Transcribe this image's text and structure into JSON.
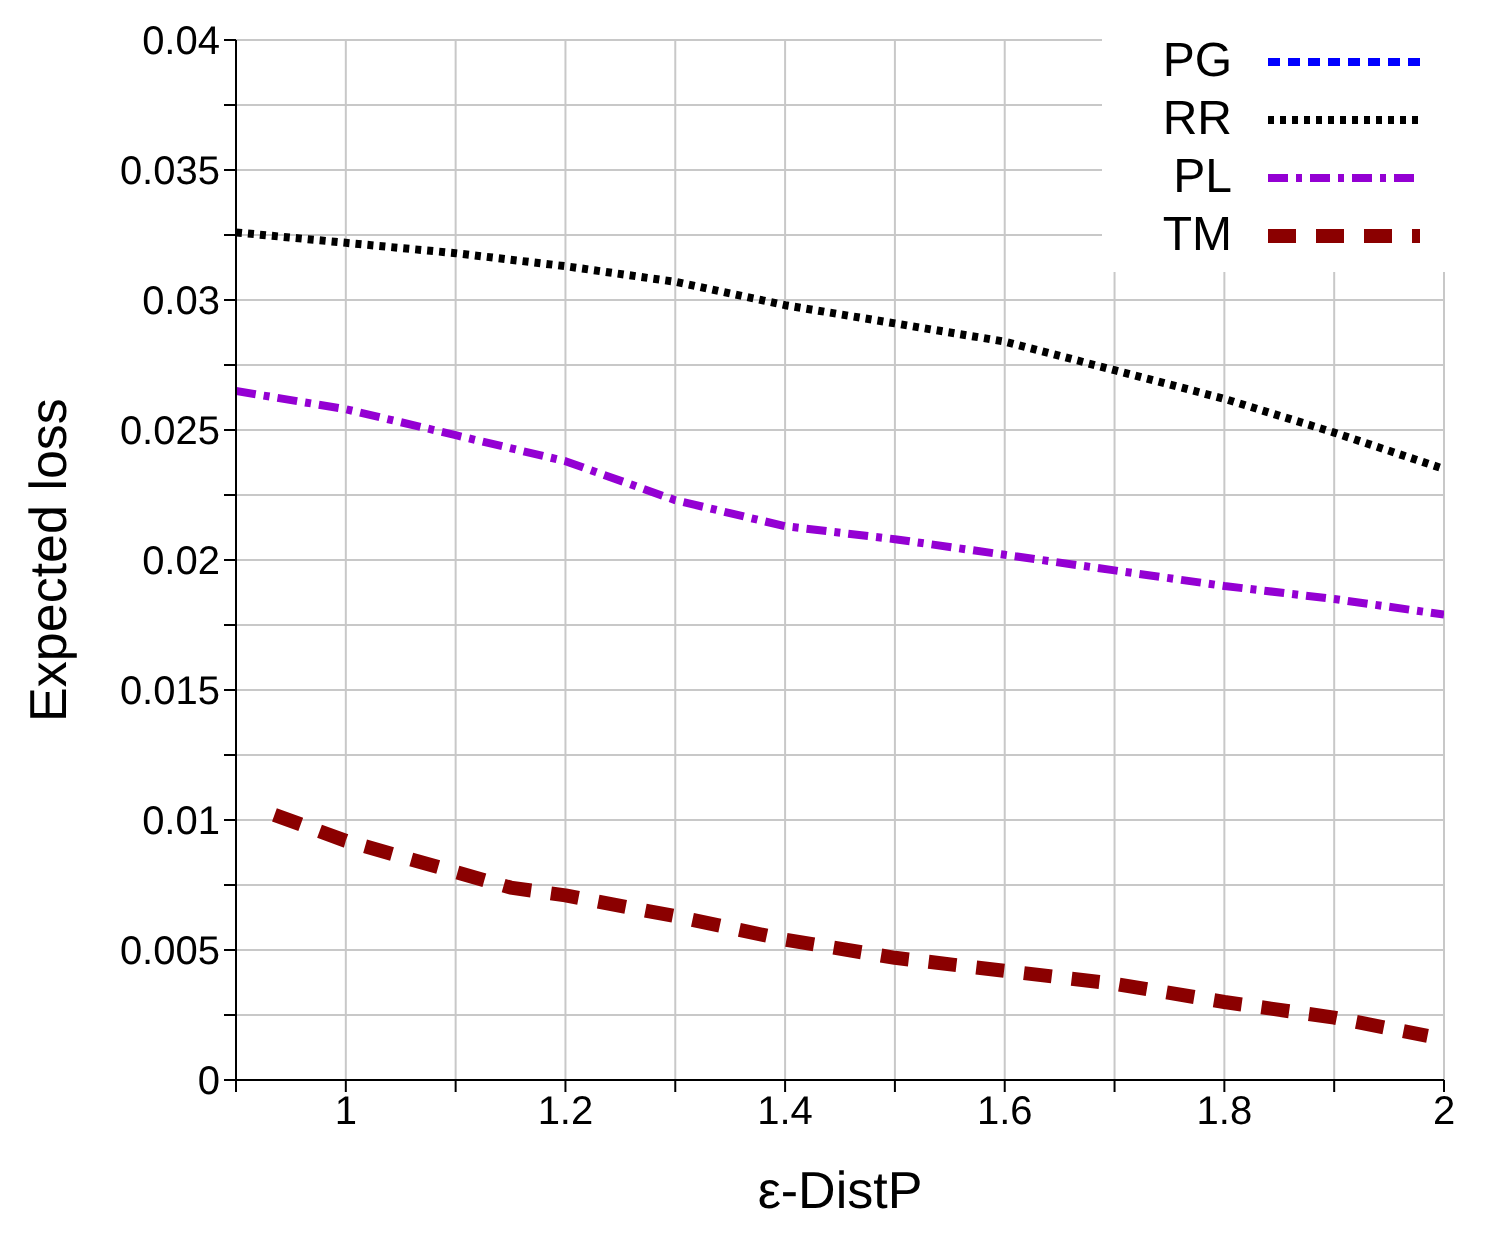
{
  "chart_data": {
    "type": "line",
    "xlabel": "ε-DistP",
    "ylabel": "Expected loss",
    "xlim": [
      0.9,
      2
    ],
    "xticks": [
      {
        "value": 0.9,
        "label": null
      },
      1,
      {
        "value": 1.1,
        "label": null
      },
      1.2,
      {
        "value": 1.3,
        "label": null
      },
      1.4,
      {
        "value": 1.5,
        "label": null
      },
      1.6,
      {
        "value": 1.7,
        "label": null
      },
      1.8,
      {
        "value": 1.9,
        "label": null
      },
      2
    ],
    "ylim": [
      0,
      0.04
    ],
    "yticks": [
      0,
      {
        "value": 0.0025,
        "label": null
      },
      0.005,
      {
        "value": 0.0075,
        "label": null
      },
      0.01,
      {
        "value": 0.0125,
        "label": null
      },
      0.015,
      {
        "value": 0.0175,
        "label": null
      },
      0.02,
      {
        "value": 0.0225,
        "label": null
      },
      0.025,
      {
        "value": 0.0275,
        "label": null
      },
      0.03,
      {
        "value": 0.0325,
        "label": null
      },
      0.035,
      {
        "value": 0.0375,
        "label": null
      },
      0.04
    ],
    "grid": true,
    "legend": "top right",
    "marker": "none",
    "series": [
      {
        "name": "PG",
        "color": "#0000ff",
        "line_style": "dashed"
      },
      {
        "name": "RR",
        "color": "#000000",
        "line_style": "dotted",
        "x": [
          0.9,
          1.0,
          1.1,
          1.2,
          1.3,
          1.4,
          1.5,
          1.6,
          1.7,
          1.8,
          1.9,
          2.0
        ],
        "values": [
          0.0326,
          0.0322,
          0.0318,
          0.0313,
          0.0307,
          0.0298,
          0.0291,
          0.0284,
          0.0273,
          0.0262,
          0.0249,
          0.0235
        ]
      },
      {
        "name": "PL",
        "color": "#9400d3",
        "line_style": "dashed",
        "x": [
          0.9,
          1.0,
          1.1,
          1.2,
          1.3,
          1.4,
          1.5,
          1.6,
          1.7,
          1.8,
          1.9,
          2.0
        ],
        "values": [
          0.0265,
          0.0258,
          0.0248,
          0.0238,
          0.0223,
          0.0213,
          0.0208,
          0.0202,
          0.0196,
          0.019,
          0.0185,
          0.0179
        ]
      },
      {
        "name": "TM",
        "color": "#8b0000",
        "line_style": "dashed",
        "x": [
          0.935,
          1.0,
          1.1,
          1.15,
          1.2,
          1.3,
          1.4,
          1.5,
          1.6,
          1.7,
          1.8,
          1.9,
          1.985
        ],
        "values": [
          0.0102,
          0.0092,
          0.008,
          0.0074,
          0.0071,
          0.0063,
          0.0054,
          0.0047,
          0.0042,
          0.0037,
          0.003,
          0.0024,
          0.0017
        ]
      }
    ]
  }
}
